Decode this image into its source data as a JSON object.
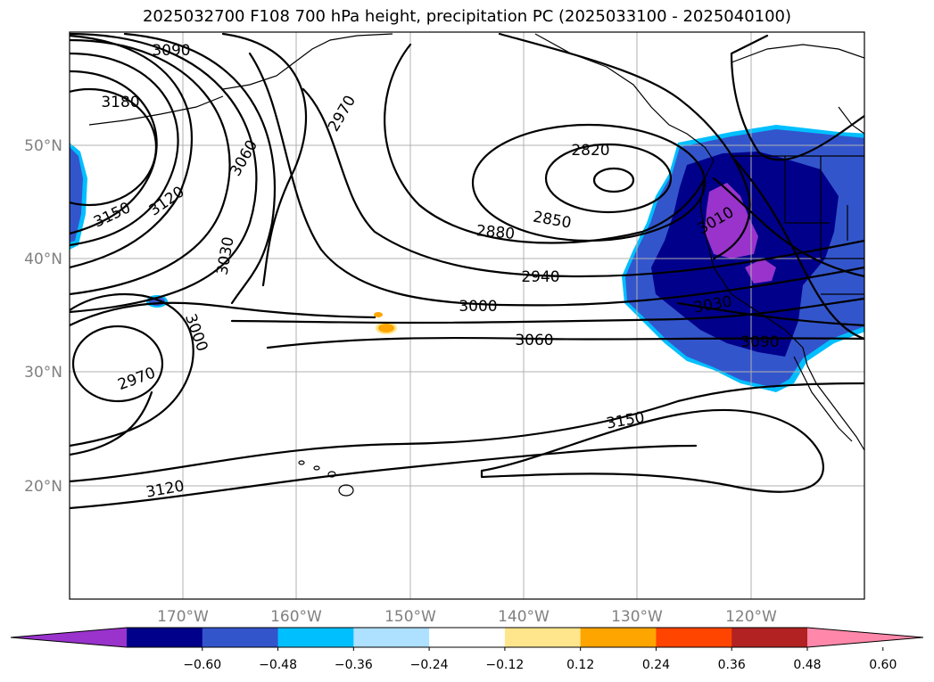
{
  "title": "2025032700 F108 700 hPa height, precipitation PC (2025033100 - 2025040100)",
  "map": {
    "lon_range": [
      -180,
      -110
    ],
    "lat_range": [
      10,
      60
    ],
    "lat_labels": [
      "20°N",
      "30°N",
      "40°N",
      "50°N"
    ],
    "lon_labels": [
      "170°W",
      "160°W",
      "150°W",
      "140°W",
      "130°W",
      "120°W"
    ],
    "grid": true
  },
  "contour_labels": [
    {
      "text": "3090"
    },
    {
      "text": "3180"
    },
    {
      "text": "3150"
    },
    {
      "text": "3120"
    },
    {
      "text": "3060"
    },
    {
      "text": "2970"
    },
    {
      "text": "3030"
    },
    {
      "text": "2820"
    },
    {
      "text": "2850"
    },
    {
      "text": "2880"
    },
    {
      "text": "2940"
    },
    {
      "text": "3000"
    },
    {
      "text": "3060"
    },
    {
      "text": "3000"
    },
    {
      "text": "2970"
    },
    {
      "text": "3150"
    },
    {
      "text": "3120"
    },
    {
      "text": "3010"
    },
    {
      "text": "3030"
    },
    {
      "text": "3090"
    }
  ],
  "colorbar": {
    "ticks": [
      "−0.60",
      "−0.48",
      "−0.36",
      "−0.24",
      "−0.12",
      "0.12",
      "0.24",
      "0.36",
      "0.48",
      "0.60"
    ],
    "colors": [
      "#9933cc",
      "#00008b",
      "#3355cc",
      "#00bfff",
      "#aee0ff",
      "#ffffff",
      "#ffe68c",
      "#ffa500",
      "#ff4500",
      "#b22222",
      "#ff88aa"
    ],
    "extend": "both"
  }
}
